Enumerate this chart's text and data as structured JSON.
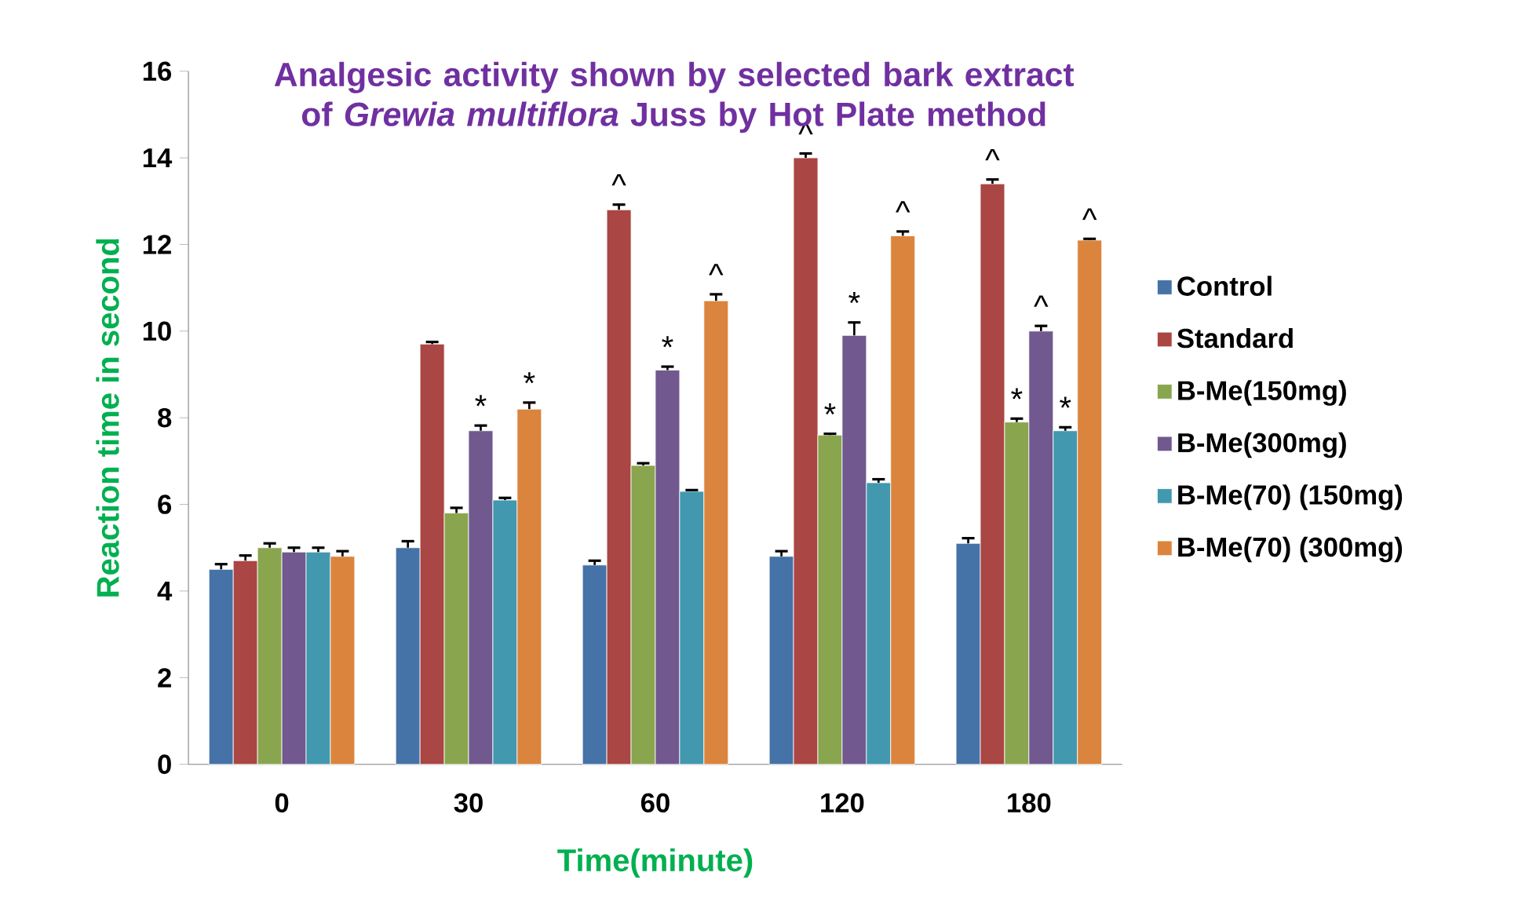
{
  "chart_data": {
    "type": "bar",
    "title": "Analgesic activity shown by selected bark extract of *Grewia multiflora* Juss by Hot Plate method",
    "xlabel": "Time(minute)",
    "ylabel": "Reaction time in second",
    "categories": [
      "0",
      "30",
      "60",
      "120",
      "180"
    ],
    "series": [
      {
        "name": "Control",
        "color": "#4572a7",
        "values": [
          4.5,
          5.0,
          4.6,
          4.8,
          5.1
        ],
        "errors": [
          0.12,
          0.15,
          0.1,
          0.12,
          0.12
        ]
      },
      {
        "name": "Standard",
        "color": "#aa4643",
        "values": [
          4.7,
          9.7,
          12.8,
          14.0,
          13.4
        ],
        "errors": [
          0.12,
          0.05,
          0.12,
          0.1,
          0.1
        ],
        "value_labels": [
          null,
          null,
          "^",
          "^",
          "^"
        ]
      },
      {
        "name": "B-Me(150mg)",
        "color": "#89a54e",
        "values": [
          5.0,
          5.8,
          6.9,
          7.6,
          7.9
        ],
        "errors": [
          0.1,
          0.12,
          0.05,
          0.03,
          0.08
        ],
        "value_labels": [
          null,
          null,
          null,
          "*",
          "*"
        ]
      },
      {
        "name": "B-Me(300mg)",
        "color": "#71588f",
        "values": [
          4.9,
          7.7,
          9.1,
          9.9,
          10.0
        ],
        "errors": [
          0.1,
          0.12,
          0.08,
          0.3,
          0.12
        ],
        "value_labels": [
          null,
          "*",
          "*",
          "*",
          "^"
        ]
      },
      {
        "name": "B-Me(70) (150mg)",
        "color": "#4198af",
        "values": [
          4.9,
          6.1,
          6.3,
          6.5,
          7.7
        ],
        "errors": [
          0.1,
          0.05,
          0.03,
          0.08,
          0.08
        ],
        "value_labels": [
          null,
          null,
          null,
          null,
          "*"
        ]
      },
      {
        "name": "B-Me(70) (300mg)",
        "color": "#db843d",
        "values": [
          4.8,
          8.2,
          10.7,
          12.2,
          12.1
        ],
        "errors": [
          0.12,
          0.15,
          0.15,
          0.1,
          0.03
        ],
        "value_labels": [
          null,
          "*",
          "^",
          "^",
          "^"
        ]
      }
    ],
    "ylim": [
      0,
      16
    ],
    "yticks": [
      0,
      2,
      4,
      6,
      8,
      10,
      12,
      14,
      16
    ],
    "legend": "right",
    "grid": false
  }
}
